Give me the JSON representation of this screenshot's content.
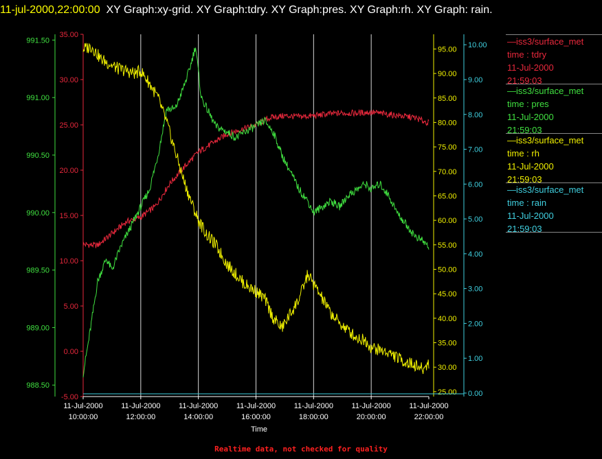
{
  "header": {
    "timestamp": "11-jul-2000,22:00:00",
    "title": "XY Graph:xy-grid.  XY Graph:tdry.  XY Graph:pres.  XY Graph:rh.  XY Graph: rain."
  },
  "footer_note": "Realtime data, not checked for quality",
  "legend": [
    {
      "lines": [
        "—iss3/surface_met",
        "time : tdry",
        "11-Jul-2000",
        "21:59:03"
      ],
      "color": "#e8283c"
    },
    {
      "lines": [
        "—iss3/surface_met",
        "time : pres",
        "11-Jul-2000",
        "21:59:03"
      ],
      "color": "#40e040"
    },
    {
      "lines": [
        "—iss3/surface_met",
        "time : rh",
        "11-Jul-2000",
        "21:59:03"
      ],
      "color": "#f0f000"
    },
    {
      "lines": [
        "—iss3/surface_met",
        "time : rain",
        "11-Jul-2000",
        "21:59:03"
      ],
      "color": "#40d0e0"
    }
  ],
  "chart_data": {
    "type": "line",
    "xlabel": "Time",
    "x_range": [
      "11-Jul-2000 10:00:00",
      "11-Jul-2000 22:00:00"
    ],
    "x_ticks": [
      [
        "11-Jul-2000",
        "10:00:00"
      ],
      [
        "11-Jul-2000",
        "12:00:00"
      ],
      [
        "11-Jul-2000",
        "14:00:00"
      ],
      [
        "11-Jul-2000",
        "16:00:00"
      ],
      [
        "11-Jul-2000",
        "18:00:00"
      ],
      [
        "11-Jul-2000",
        "20:00:00"
      ],
      [
        "11-Jul-2000",
        "22:00:00"
      ]
    ],
    "grid": "vertical",
    "axes": {
      "tdry": {
        "color": "#e8283c",
        "ylim": [
          -5,
          35
        ],
        "ticks": [
          "-5.00",
          "0.00",
          "5.00",
          "10.00",
          "15.00",
          "20.00",
          "25.00",
          "30.00",
          "35.00"
        ]
      },
      "pres": {
        "color": "#40e040",
        "ylim": [
          988.4,
          991.55
        ],
        "ticks": [
          "988.50",
          "989.00",
          "989.50",
          "990.00",
          "990.50",
          "991.00",
          "991.50"
        ]
      },
      "rh": {
        "color": "#f0f000",
        "ylim": [
          24,
          98
        ],
        "ticks": [
          "25.00",
          "30.00",
          "35.00",
          "40.00",
          "45.00",
          "50.00",
          "55.00",
          "60.00",
          "65.00",
          "70.00",
          "75.00",
          "80.00",
          "85.00",
          "90.00",
          "95.00"
        ]
      },
      "rain": {
        "color": "#40d0e0",
        "ylim": [
          -0.1,
          10.3
        ],
        "ticks": [
          "0.00",
          "1.00",
          "2.00",
          "3.00",
          "4.00",
          "5.00",
          "6.00",
          "7.00",
          "8.00",
          "9.00",
          "10.00"
        ]
      }
    },
    "series": [
      {
        "name": "tdry",
        "axis": "tdry",
        "x_hours": [
          10,
          10.5,
          11,
          11.5,
          12,
          12.5,
          13,
          13.5,
          14,
          14.5,
          15,
          15.5,
          16,
          16.5,
          17,
          17.5,
          18,
          18.5,
          19,
          19.5,
          20,
          20.5,
          21,
          21.5,
          22
        ],
        "values": [
          11.8,
          11.7,
          13,
          14.3,
          14.8,
          16,
          18.5,
          20.3,
          22,
          23,
          24,
          24.5,
          25,
          25.8,
          26,
          25.9,
          26,
          26.2,
          26.3,
          26.3,
          26.4,
          26.2,
          26,
          25.8,
          25.2
        ]
      },
      {
        "name": "pres",
        "axis": "pres",
        "x_hours": [
          10,
          10.2,
          10.5,
          10.8,
          11,
          11.3,
          11.6,
          12,
          12.3,
          12.6,
          12.9,
          13.2,
          13.5,
          13.7,
          13.9,
          14.1,
          14.3,
          14.6,
          15,
          15.3,
          15.6,
          16,
          16.3,
          16.6,
          16.9,
          17.2,
          17.5,
          17.8,
          18,
          18.3,
          18.6,
          18.9,
          19.2,
          19.5,
          19.8,
          20,
          20.3,
          20.6,
          20.9,
          21.2,
          21.5,
          21.8,
          22
        ],
        "values": [
          988.6,
          988.9,
          989.4,
          989.6,
          989.5,
          989.7,
          989.85,
          990.05,
          990.2,
          990.5,
          990.9,
          990.9,
          991.1,
          991.25,
          991.45,
          991.0,
          990.9,
          990.75,
          990.7,
          990.65,
          990.7,
          990.75,
          990.8,
          990.7,
          990.5,
          990.35,
          990.2,
          990.1,
          990.0,
          990.05,
          990.1,
          990.05,
          990.15,
          990.2,
          990.25,
          990.2,
          990.25,
          990.15,
          990.0,
          989.9,
          989.8,
          989.75,
          989.7
        ]
      },
      {
        "name": "rh",
        "axis": "rh",
        "x_hours": [
          10,
          10.3,
          10.6,
          10.9,
          11.2,
          11.5,
          11.8,
          12,
          12.3,
          12.6,
          12.9,
          13.2,
          13.5,
          13.8,
          14,
          14.3,
          14.6,
          15,
          15.3,
          15.6,
          16,
          16.3,
          16.6,
          16.9,
          17.2,
          17.5,
          17.8,
          18,
          18.3,
          18.6,
          18.9,
          19.2,
          19.5,
          19.8,
          20,
          20.3,
          20.6,
          20.9,
          21.2,
          21.5,
          21.8,
          22
        ],
        "values": [
          95,
          95.5,
          93,
          92,
          91,
          90.5,
          90,
          90.5,
          88,
          85,
          80,
          74,
          68,
          63,
          60,
          57,
          55,
          51,
          49,
          47,
          45.5,
          44,
          40,
          38,
          41,
          44,
          49,
          47,
          44,
          41,
          39,
          37.5,
          36,
          35.5,
          34,
          33.5,
          33,
          32,
          31,
          30.5,
          29.5,
          31
        ]
      },
      {
        "name": "rain",
        "axis": "rain",
        "x_hours": [
          10,
          22
        ],
        "values": [
          0.0,
          0.0
        ]
      }
    ]
  }
}
